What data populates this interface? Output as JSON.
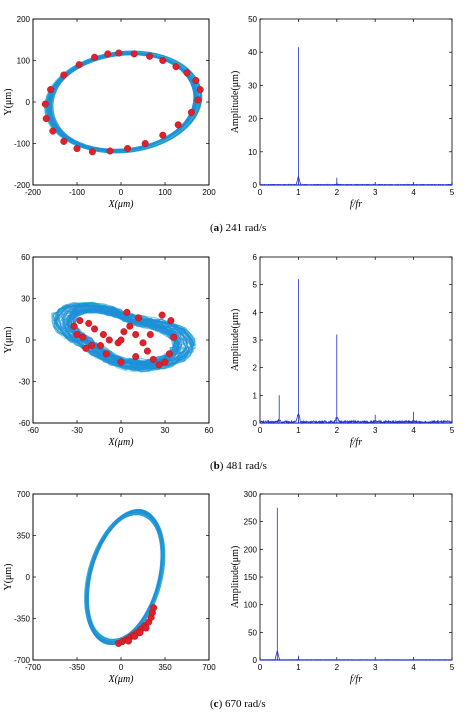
{
  "chart_data": [
    {
      "type": "scatter",
      "panel": "a-orbit",
      "xlabel": "X(μm)",
      "ylabel": "Y(μm)",
      "xlim": [
        -200,
        200
      ],
      "ylim": [
        -200,
        200
      ],
      "xticks": [
        "-200",
        "-100",
        "0",
        "100",
        "200"
      ],
      "yticks": [
        "200",
        "100",
        "0",
        "-100",
        "-200"
      ],
      "colors": {
        "orbit": "#1e90d8",
        "points": "#e0202a"
      },
      "orbit": {
        "kind": "ellipse",
        "cx": 5,
        "cy": 0,
        "rx": 170,
        "ry": 117,
        "tilt_deg": 8
      },
      "points": {
        "x": [
          -5,
          30,
          65,
          95,
          125,
          150,
          170,
          180,
          175,
          160,
          130,
          95,
          55,
          15,
          -25,
          -65,
          -100,
          -130,
          -155,
          -170,
          -172,
          -160,
          -130,
          -95,
          -60,
          -30
        ],
        "y": [
          118,
          116,
          110,
          100,
          85,
          70,
          52,
          30,
          5,
          -25,
          -55,
          -80,
          -100,
          -112,
          -118,
          -120,
          -112,
          -95,
          -70,
          -40,
          -5,
          30,
          65,
          90,
          108,
          116
        ]
      }
    },
    {
      "type": "line",
      "panel": "a-spectrum",
      "xlabel": "f/fr",
      "ylabel": "Amplitude(μm)",
      "xlim": [
        0,
        5
      ],
      "ylim": [
        0,
        50
      ],
      "xticks": [
        "0",
        "1",
        "2",
        "3",
        "4",
        "5"
      ],
      "yticks": [
        "50",
        "40",
        "30",
        "20",
        "10",
        "0"
      ],
      "colors": {
        "line": "#2030c8"
      },
      "peaks": {
        "x": [
          1,
          2,
          3,
          4
        ],
        "y": [
          41.5,
          2.2,
          0.5,
          0.3
        ]
      },
      "noise_level": 0.2
    },
    {
      "type": "scatter",
      "panel": "b-orbit",
      "xlabel": "X(μm)",
      "ylabel": "Y(μm)",
      "xlim": [
        -60,
        60
      ],
      "ylim": [
        -60,
        60
      ],
      "xticks": [
        "-60",
        "-30",
        "0",
        "30",
        "60"
      ],
      "yticks": [
        "60",
        "30",
        "0",
        "-30",
        "-60"
      ],
      "colors": {
        "orbit": "#1e90d8",
        "outer": "#40c8b8",
        "points": "#e0202a"
      },
      "points": {
        "x": [
          -32,
          -28,
          -22,
          -18,
          -12,
          -8,
          -2,
          2,
          6,
          10,
          15,
          18,
          22,
          26,
          30,
          33,
          36,
          34,
          28,
          20,
          10,
          0,
          -10,
          -20,
          -26,
          -30,
          -24,
          -14,
          0,
          12,
          4
        ],
        "y": [
          10,
          14,
          12,
          8,
          4,
          0,
          -2,
          6,
          10,
          4,
          -2,
          -8,
          -14,
          -18,
          -16,
          -10,
          2,
          14,
          18,
          4,
          -12,
          -16,
          -10,
          -4,
          2,
          4,
          -6,
          -4,
          0,
          16,
          20
        ]
      }
    },
    {
      "type": "line",
      "panel": "b-spectrum",
      "xlabel": "f/fr",
      "ylabel": "Amplitude(μm)",
      "xlim": [
        0,
        5
      ],
      "ylim": [
        0,
        6
      ],
      "xticks": [
        "0",
        "1",
        "2",
        "3",
        "4",
        "5"
      ],
      "yticks": [
        "6",
        "5",
        "4",
        "3",
        "2",
        "1",
        "0"
      ],
      "colors": {
        "line": "#2030c8"
      },
      "peaks": {
        "x": [
          0.5,
          1,
          2,
          3,
          4
        ],
        "y": [
          1.0,
          5.2,
          3.2,
          0.3,
          0.4
        ]
      },
      "noise_level": 0.08
    },
    {
      "type": "scatter",
      "panel": "c-orbit",
      "xlabel": "X(μm)",
      "ylabel": "Y(μm)",
      "xlim": [
        -700,
        700
      ],
      "ylim": [
        -700,
        700
      ],
      "xticks": [
        "-700",
        "-350",
        "0",
        "350",
        "700"
      ],
      "yticks": [
        "700",
        "350",
        "0",
        "-350",
        "-700"
      ],
      "colors": {
        "orbit": "#1e90d8",
        "points": "#e0202a"
      },
      "orbit": {
        "kind": "ellipse",
        "cx": 30,
        "cy": 0,
        "rx": 280,
        "ry": 560,
        "tilt_deg": -14
      },
      "points": {
        "x": [
          -20,
          10,
          40,
          70,
          100,
          130,
          160,
          190,
          220,
          240,
          250,
          260,
          200,
          150,
          110,
          60
        ],
        "y": [
          -560,
          -545,
          -530,
          -510,
          -490,
          -470,
          -440,
          -410,
          -380,
          -340,
          -300,
          -260,
          -430,
          -470,
          -500,
          -540
        ]
      }
    },
    {
      "type": "line",
      "panel": "c-spectrum",
      "xlabel": "f/fr",
      "ylabel": "Amplitude(μm)",
      "xlim": [
        0,
        5
      ],
      "ylim": [
        0,
        300
      ],
      "xticks": [
        "0",
        "1",
        "2",
        "3",
        "4",
        "5"
      ],
      "yticks": [
        "300",
        "250",
        "200",
        "150",
        "100",
        "50",
        "0"
      ],
      "colors": {
        "line": "#2030c8"
      },
      "peaks": {
        "x": [
          0.45,
          1
        ],
        "y": [
          275,
          8
        ]
      },
      "noise_level": 0.5
    }
  ],
  "captions": [
    {
      "letter": "a",
      "text": " 241 rad/s"
    },
    {
      "letter": "b",
      "text": " 481 rad/s"
    },
    {
      "letter": "c",
      "text": " 670 rad/s"
    }
  ]
}
